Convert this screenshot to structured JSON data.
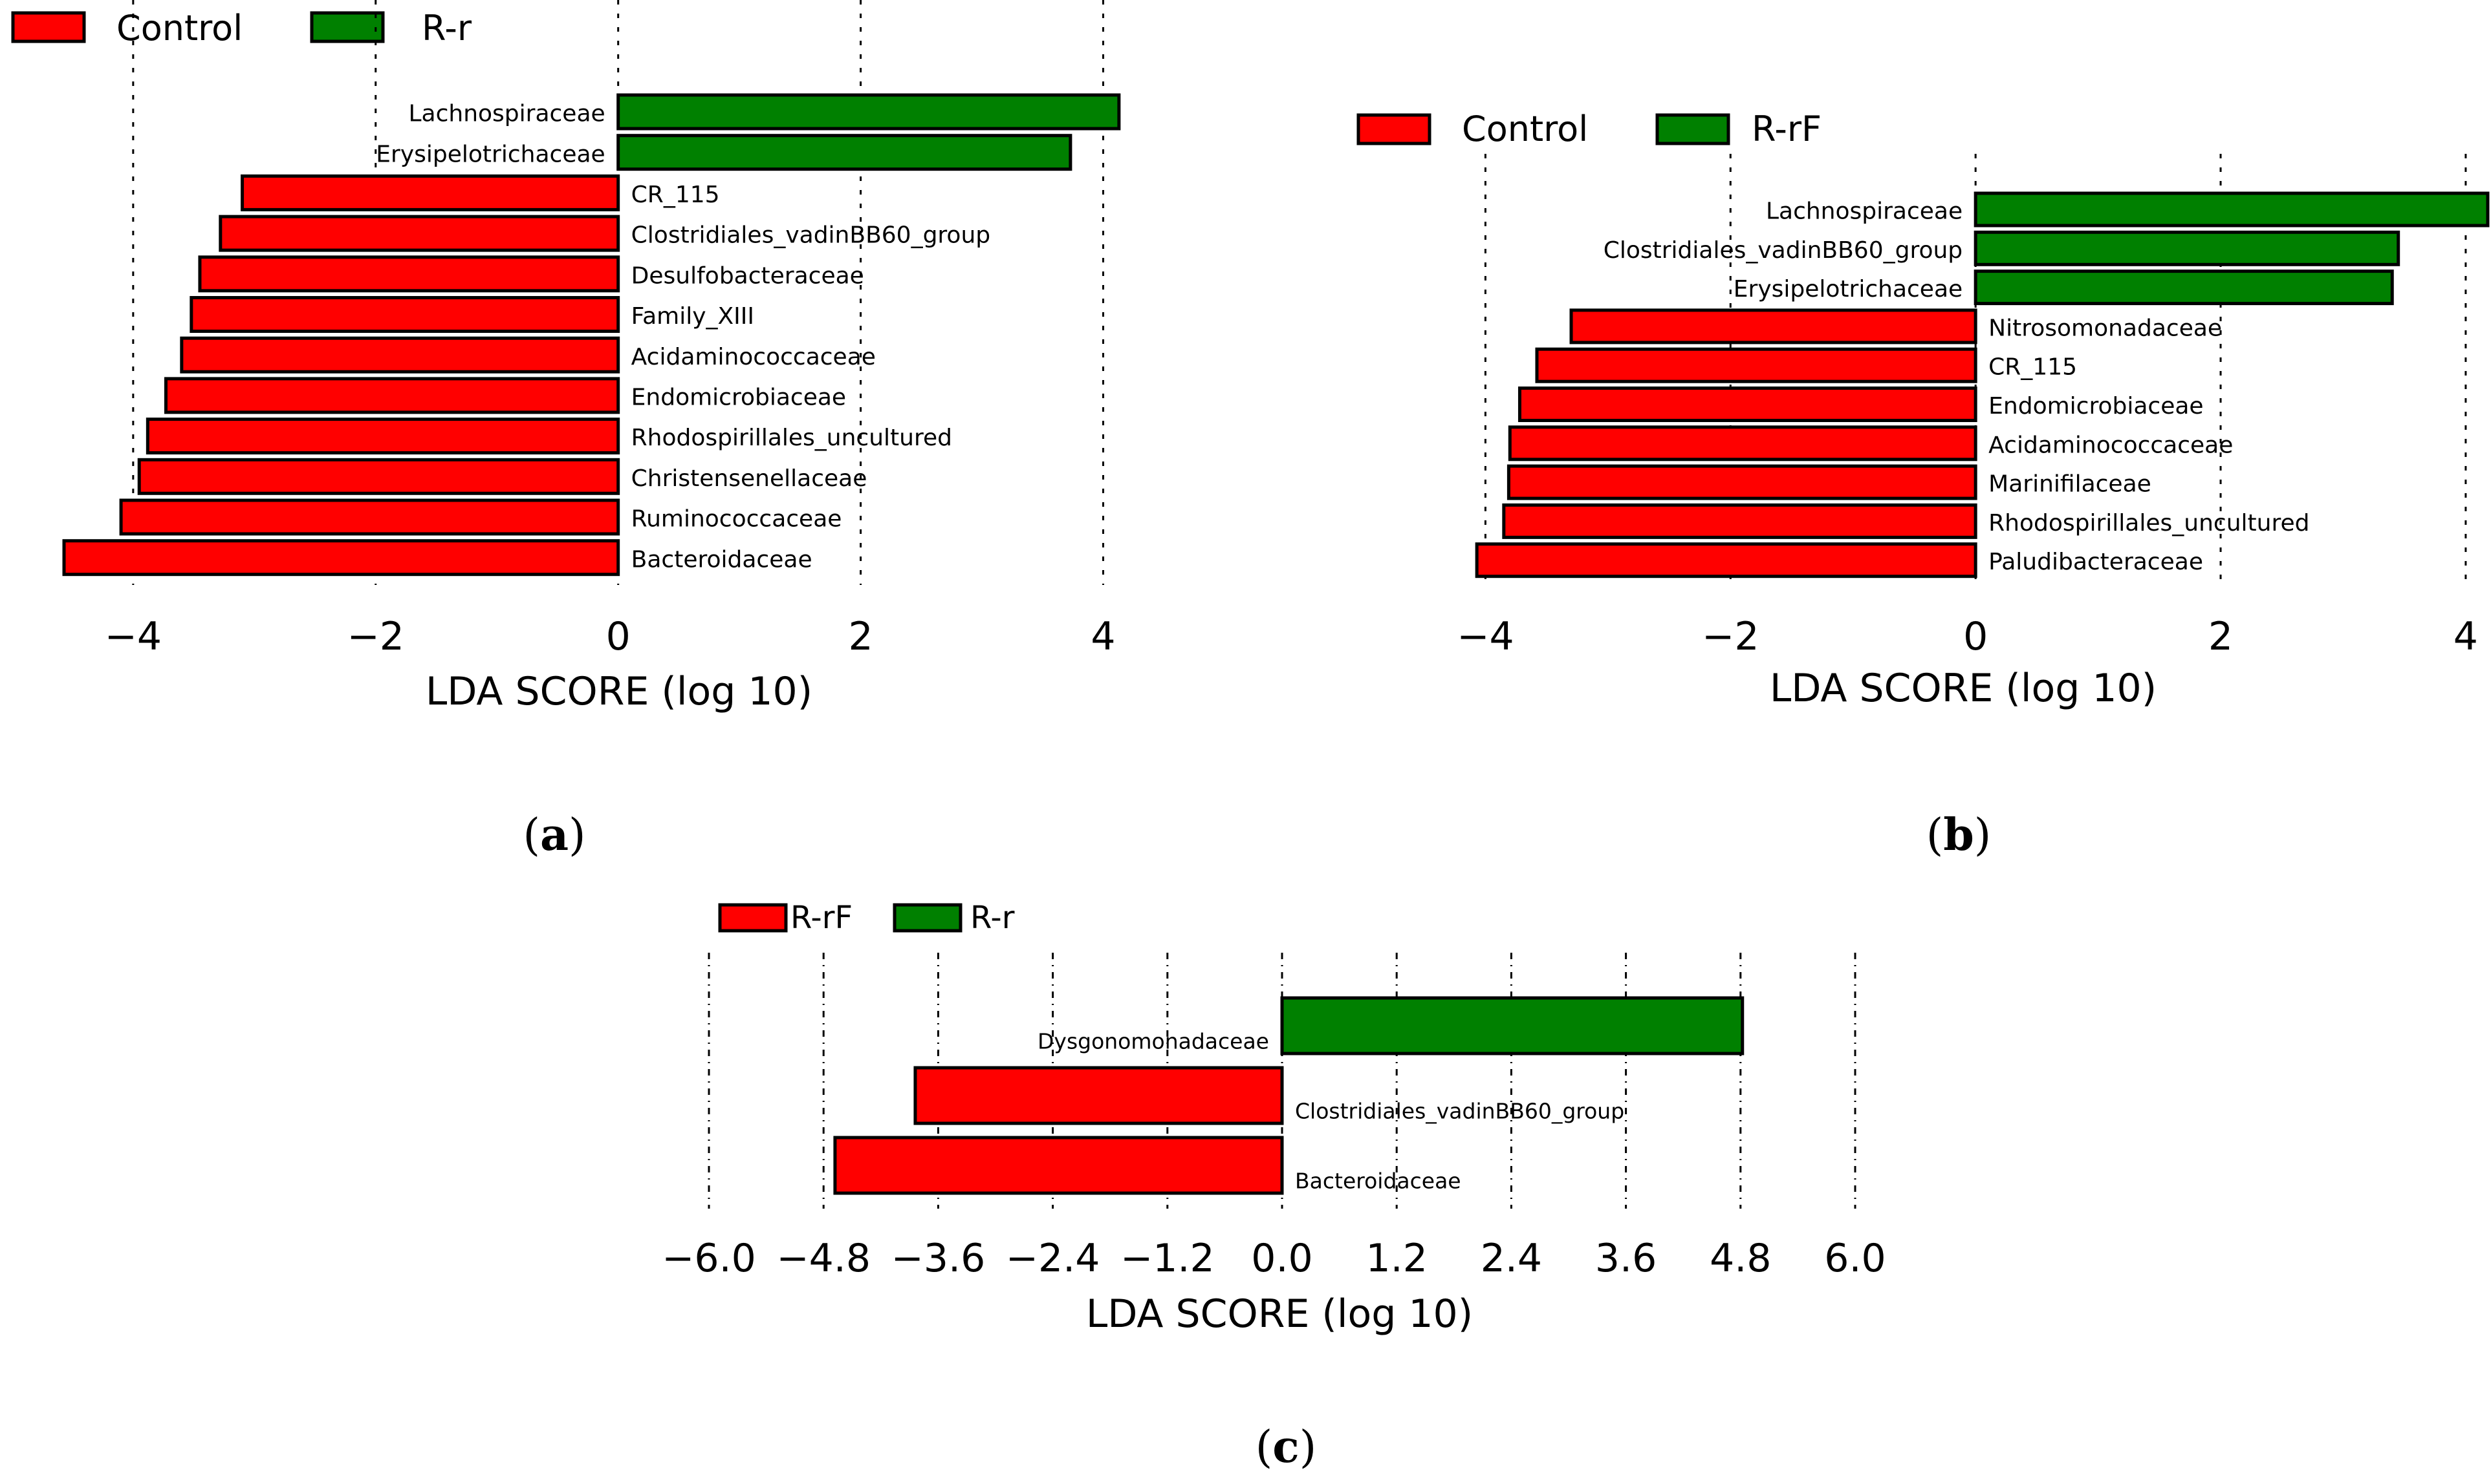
{
  "figure": {
    "xlabel": "LDA SCORE (log 10)",
    "colors": {
      "group_a": "#ff0000",
      "group_b": "#008000"
    }
  },
  "chart_data": [
    {
      "type": "bar",
      "orientation": "horizontal",
      "panel": "a",
      "panel_label": "a",
      "legend": [
        "Control",
        "R-r"
      ],
      "xlabel": "LDA SCORE (log 10)",
      "xlim": [
        -4.65,
        4.2
      ],
      "xticks": [
        -4,
        -2,
        0,
        2,
        4
      ],
      "xtick_labels": [
        "−4",
        "−2",
        "0",
        "2",
        "4"
      ],
      "grid": true,
      "categories": [
        "Lachnospiraceae",
        "Erysipelotrichaceae",
        "CR_115",
        "Clostridiales_vadinBB60_group",
        "Desulfobacteraceae",
        "Family_XIII",
        "Acidaminococcaceae",
        "Endomicrobiaceae",
        "Rhodospirillales_uncultured",
        "Christensenellaceae",
        "Ruminococcaceae",
        "Bacteroidaceae"
      ],
      "values": [
        4.13,
        3.73,
        -3.1,
        -3.28,
        -3.45,
        -3.52,
        -3.6,
        -3.73,
        -3.88,
        -3.95,
        -4.1,
        -4.57
      ],
      "groups": [
        "R-r",
        "R-r",
        "Control",
        "Control",
        "Control",
        "Control",
        "Control",
        "Control",
        "Control",
        "Control",
        "Control",
        "Control"
      ]
    },
    {
      "type": "bar",
      "orientation": "horizontal",
      "panel": "b",
      "panel_label": "b",
      "legend": [
        "Control",
        "R-rF"
      ],
      "xlabel": "LDA SCORE (log 10)",
      "xlim": [
        -4.15,
        4.18
      ],
      "xticks": [
        -4,
        -2,
        0,
        2,
        4
      ],
      "xtick_labels": [
        "−4",
        "−2",
        "0",
        "2",
        "4"
      ],
      "grid": true,
      "categories": [
        "Lachnospiraceae",
        "Clostridiales_vadinBB60_group",
        "Erysipelotrichaceae",
        "Nitrosomonadaceae",
        "CR_115",
        "Endomicrobiaceae",
        "Acidaminococcaceae",
        "Marinifilaceae",
        "Rhodospirillales_uncultured",
        "Paludibacteraceae"
      ],
      "values": [
        4.18,
        3.45,
        3.4,
        -3.3,
        -3.58,
        -3.72,
        -3.8,
        -3.81,
        -3.85,
        -4.07
      ],
      "groups": [
        "R-rF",
        "R-rF",
        "R-rF",
        "Control",
        "Control",
        "Control",
        "Control",
        "Control",
        "Control",
        "Control"
      ]
    },
    {
      "type": "bar",
      "orientation": "horizontal",
      "panel": "c",
      "panel_label": "c",
      "legend": [
        "R-rF",
        "R-r"
      ],
      "xlabel": "LDA SCORE (log 10)",
      "xlim": [
        -6.0,
        6.0
      ],
      "xticks": [
        -6.0,
        -4.8,
        -3.6,
        -2.4,
        -1.2,
        0.0,
        1.2,
        2.4,
        3.6,
        4.8,
        6.0
      ],
      "xtick_labels": [
        "−6.0",
        "−4.8",
        "−3.6",
        "−2.4",
        "−1.2",
        "0.0",
        "1.2",
        "2.4",
        "3.6",
        "4.8",
        "6.0"
      ],
      "grid": true,
      "categories": [
        "Dysgonomonadaceae",
        "Clostridiales_vadinBB60_group",
        "Bacteroidaceae"
      ],
      "values": [
        4.82,
        -3.84,
        -4.68
      ],
      "groups": [
        "R-r",
        "R-rF",
        "R-rF"
      ]
    }
  ]
}
